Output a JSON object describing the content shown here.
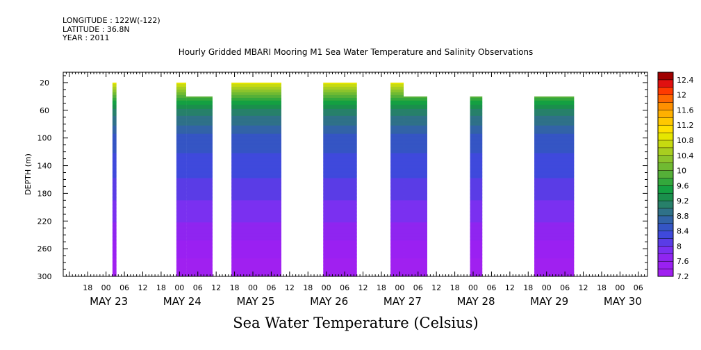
{
  "meta": {
    "longitude": "LONGITUDE : 122W(-122)",
    "latitude": "LATITUDE : 36.8N",
    "year": "YEAR : 2011"
  },
  "chart_data": {
    "type": "heatmap",
    "title": "Hourly Gridded MBARI Mooring M1 Sea Water Temperature and Salinity Observations",
    "xlabel": "Sea Water Temperature (Celsius)",
    "ylabel": "DEPTH (m)",
    "x_unit": "hours since 2011-05-22 00:00",
    "xlim": [
      10,
      201
    ],
    "ylim": [
      300,
      5
    ],
    "y_reversed": true,
    "yticks": [
      20,
      60,
      100,
      140,
      180,
      220,
      260,
      300
    ],
    "xticks": [
      {
        "label": "18",
        "x": 18
      },
      {
        "label": "00",
        "x": 24
      },
      {
        "label": "06",
        "x": 30
      },
      {
        "label": "12",
        "x": 36
      },
      {
        "label": "18",
        "x": 42
      },
      {
        "label": "00",
        "x": 48
      },
      {
        "label": "06",
        "x": 54
      },
      {
        "label": "12",
        "x": 60
      },
      {
        "label": "18",
        "x": 66
      },
      {
        "label": "00",
        "x": 72
      },
      {
        "label": "06",
        "x": 78
      },
      {
        "label": "12",
        "x": 84
      },
      {
        "label": "18",
        "x": 90
      },
      {
        "label": "00",
        "x": 96
      },
      {
        "label": "06",
        "x": 102
      },
      {
        "label": "12",
        "x": 108
      },
      {
        "label": "18",
        "x": 114
      },
      {
        "label": "00",
        "x": 120
      },
      {
        "label": "06",
        "x": 126
      },
      {
        "label": "12",
        "x": 132
      },
      {
        "label": "18",
        "x": 138
      },
      {
        "label": "00",
        "x": 144
      },
      {
        "label": "06",
        "x": 150
      },
      {
        "label": "12",
        "x": 156
      },
      {
        "label": "18",
        "x": 162
      },
      {
        "label": "00",
        "x": 168
      },
      {
        "label": "06",
        "x": 174
      },
      {
        "label": "12",
        "x": 180
      },
      {
        "label": "18",
        "x": 186
      },
      {
        "label": "00",
        "x": 192
      },
      {
        "label": "06",
        "x": 198
      }
    ],
    "day_labels": [
      {
        "label": "MAY 23",
        "x": 24
      },
      {
        "label": "MAY 24",
        "x": 48
      },
      {
        "label": "MAY 25",
        "x": 72
      },
      {
        "label": "MAY 26",
        "x": 96
      },
      {
        "label": "MAY 27",
        "x": 120
      },
      {
        "label": "MAY 28",
        "x": 144
      },
      {
        "label": "MAY 29",
        "x": 168
      },
      {
        "label": "MAY 30",
        "x": 192
      }
    ],
    "colorbar": {
      "levels": [
        7.2,
        7.4,
        7.6,
        7.8,
        8,
        8.2,
        8.4,
        8.6,
        8.8,
        9,
        9.2,
        9.4,
        9.6,
        9.8,
        10,
        10.2,
        10.4,
        10.6,
        10.8,
        11,
        11.2,
        11.4,
        11.6,
        11.8,
        12,
        12.2,
        12.4
      ],
      "labels": [
        "7.2",
        "7.6",
        "8",
        "8.4",
        "8.8",
        "9.2",
        "9.6",
        "10",
        "10.4",
        "10.8",
        "11.2",
        "11.6",
        "12",
        "12.4"
      ],
      "colors": [
        "#a020f0",
        "#9a20f2",
        "#8f25f0",
        "#7a30f0",
        "#5a3ce6",
        "#3f49dc",
        "#3555c4",
        "#3263a7",
        "#2f7188",
        "#27806a",
        "#1a8f4c",
        "#14a042",
        "#33a83c",
        "#55b038",
        "#70ba32",
        "#8cc42c",
        "#a8ce20",
        "#c6da10",
        "#e6e600",
        "#ffe000",
        "#ffc800",
        "#ffb000",
        "#ff9000",
        "#ff6800",
        "#ff3a00",
        "#e01010",
        "#a00000"
      ]
    },
    "segments": [
      {
        "x0": 26.1,
        "x1": 27.4,
        "top": [
          20,
          20
        ],
        "bottom": 300
      },
      {
        "x0": 47.0,
        "x1": 50.3,
        "top": [
          20,
          20
        ],
        "bottom": 300
      },
      {
        "x0": 50.3,
        "x1": 58.8,
        "top": [
          40,
          40
        ],
        "bottom": 300
      },
      {
        "x0": 65.0,
        "x1": 81.3,
        "top": [
          20,
          20
        ],
        "bottom": 300
      },
      {
        "x0": 95.0,
        "x1": 106.0,
        "top": [
          20,
          20
        ],
        "bottom": 300
      },
      {
        "x0": 117.0,
        "x1": 121.4,
        "top": [
          20,
          20
        ],
        "bottom": 300
      },
      {
        "x0": 121.4,
        "x1": 129.0,
        "top": [
          40,
          40
        ],
        "bottom": 300
      },
      {
        "x0": 143.0,
        "x1": 147.0,
        "top": [
          40,
          40
        ],
        "bottom": 300
      },
      {
        "x0": 164.0,
        "x1": 177.0,
        "top": [
          40,
          40
        ],
        "bottom": 300
      }
    ],
    "profile": [
      {
        "depth": 20,
        "temp": 10.9
      },
      {
        "depth": 40,
        "temp": 9.8
      },
      {
        "depth": 60,
        "temp": 9.1
      },
      {
        "depth": 80,
        "temp": 8.8
      },
      {
        "depth": 100,
        "temp": 8.5
      },
      {
        "depth": 140,
        "temp": 8.3
      },
      {
        "depth": 180,
        "temp": 8.05
      },
      {
        "depth": 220,
        "temp": 7.8
      },
      {
        "depth": 260,
        "temp": 7.5
      },
      {
        "depth": 300,
        "temp": 7.2
      }
    ]
  }
}
